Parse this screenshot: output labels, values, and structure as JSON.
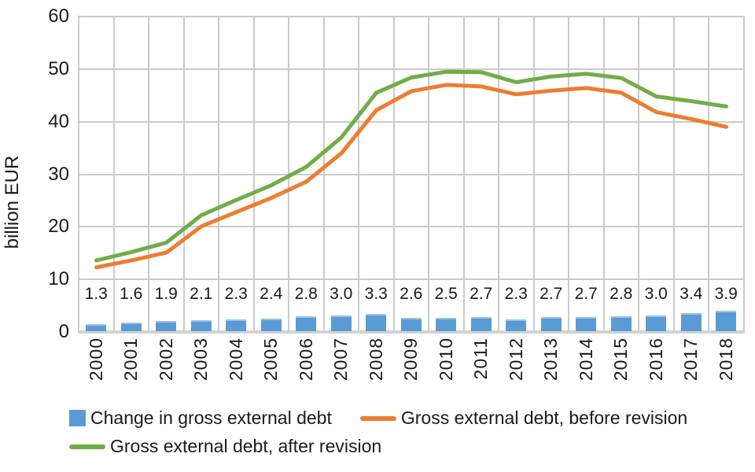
{
  "chart_data": {
    "type": "combo",
    "title": "",
    "ylabel": "billion EUR",
    "xlabel": "",
    "ylim": [
      0,
      60
    ],
    "yticks": [
      0,
      10,
      20,
      30,
      40,
      50,
      60
    ],
    "grid": true,
    "legend_position": "bottom",
    "categories": [
      "2000",
      "2001",
      "2002",
      "2003",
      "2004",
      "2005",
      "2006",
      "2007",
      "2008",
      "2009",
      "2010",
      "2011",
      "2012",
      "2013",
      "2014",
      "2015",
      "2016",
      "2017",
      "2018"
    ],
    "series": [
      {
        "name": "Change in gross external debt",
        "type": "bar",
        "color": "#5B9BD5",
        "values": [
          1.3,
          1.6,
          1.9,
          2.1,
          2.3,
          2.4,
          2.8,
          3.0,
          3.3,
          2.6,
          2.5,
          2.7,
          2.3,
          2.7,
          2.7,
          2.8,
          3.0,
          3.4,
          3.9
        ],
        "value_labels": [
          "1.3",
          "1.6",
          "1.9",
          "2.1",
          "2.3",
          "2.4",
          "2.8",
          "3.0",
          "3.3",
          "2.6",
          "2.5",
          "2.7",
          "2.3",
          "2.7",
          "2.7",
          "2.8",
          "3.0",
          "3.4",
          "3.9"
        ]
      },
      {
        "name": "Gross external debt, before revision",
        "type": "line",
        "color": "#ED7D31",
        "values": [
          12.3,
          13.6,
          15.1,
          20.1,
          22.8,
          25.5,
          28.6,
          34.0,
          42.2,
          45.8,
          47.0,
          46.7,
          45.2,
          45.9,
          46.4,
          45.5,
          41.8,
          40.5,
          39.0
        ]
      },
      {
        "name": "Gross external debt, after revision",
        "type": "line",
        "color": "#70AD47",
        "values": [
          13.6,
          15.2,
          17.0,
          22.2,
          25.1,
          27.9,
          31.4,
          37.0,
          45.5,
          48.4,
          49.5,
          49.4,
          47.5,
          48.6,
          49.1,
          48.3,
          44.8,
          43.9,
          42.9
        ]
      }
    ],
    "colors": {
      "gridline": "#CBCBCB",
      "axis_line": "#D2D2D2",
      "text": "#1A1A1A",
      "bar_edge": "#9DC3E6"
    }
  }
}
